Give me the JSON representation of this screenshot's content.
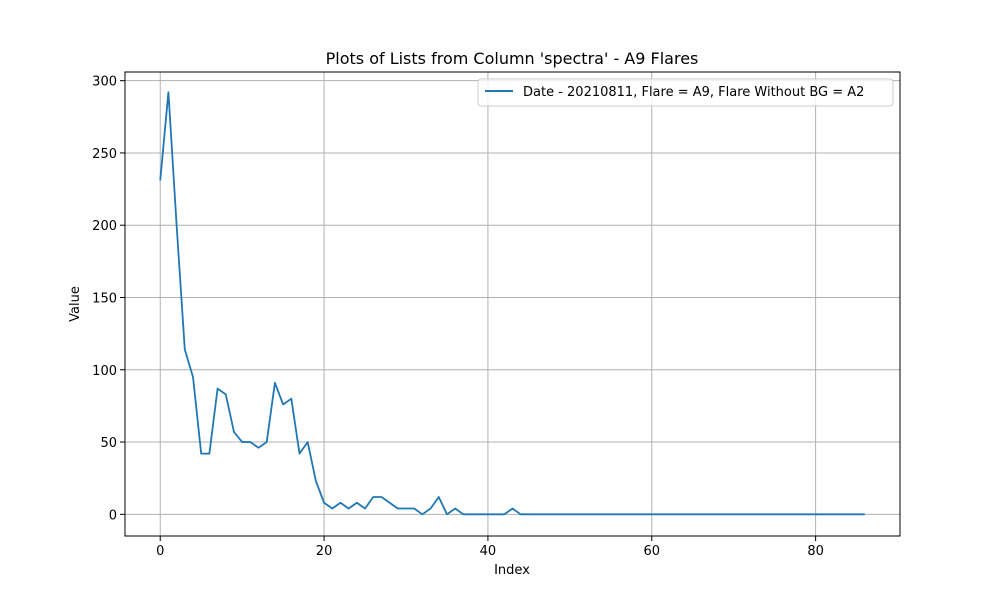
{
  "chart_data": {
    "type": "line",
    "title": "Plots of Lists from Column 'spectra' - A9 Flares",
    "xlabel": "Index",
    "ylabel": "Value",
    "xlim": [
      -4.3,
      90.3
    ],
    "ylim": [
      -15,
      306
    ],
    "xticks": [
      0,
      20,
      40,
      60,
      80
    ],
    "yticks": [
      0,
      50,
      100,
      150,
      200,
      250,
      300
    ],
    "grid": true,
    "legend_position": "top-right",
    "series": [
      {
        "name": "Date - 20210811, Flare = A9, Flare Without BG = A2",
        "color": "#1f77b4",
        "x": [
          0,
          1,
          2,
          3,
          4,
          5,
          6,
          7,
          8,
          9,
          10,
          11,
          12,
          13,
          14,
          15,
          16,
          17,
          18,
          19,
          20,
          21,
          22,
          23,
          24,
          25,
          26,
          27,
          28,
          29,
          30,
          31,
          32,
          33,
          34,
          35,
          36,
          37,
          38,
          39,
          40,
          41,
          42,
          43,
          44,
          45,
          46,
          47,
          48,
          49,
          50,
          51,
          52,
          53,
          54,
          55,
          56,
          57,
          58,
          59,
          60,
          61,
          62,
          63,
          64,
          65,
          66,
          67,
          68,
          69,
          70,
          71,
          72,
          73,
          74,
          75,
          76,
          77,
          78,
          79,
          80,
          81,
          82,
          83,
          84,
          85,
          86
        ],
        "values": [
          231,
          292,
          200,
          114,
          95,
          42,
          42,
          87,
          83,
          57,
          50,
          50,
          46,
          50,
          91,
          76,
          80,
          42,
          50,
          23,
          8,
          4,
          8,
          4,
          8,
          4,
          12,
          12,
          8,
          4,
          4,
          4,
          0,
          4,
          12,
          0,
          4,
          0,
          0,
          0,
          0,
          0,
          0,
          4,
          0,
          0,
          0,
          0,
          0,
          0,
          0,
          0,
          0,
          0,
          0,
          0,
          0,
          0,
          0,
          0,
          0,
          0,
          0,
          0,
          0,
          0,
          0,
          0,
          0,
          0,
          0,
          0,
          0,
          0,
          0,
          0,
          0,
          0,
          0,
          0,
          0,
          0,
          0,
          0,
          0,
          0,
          0
        ]
      }
    ]
  }
}
